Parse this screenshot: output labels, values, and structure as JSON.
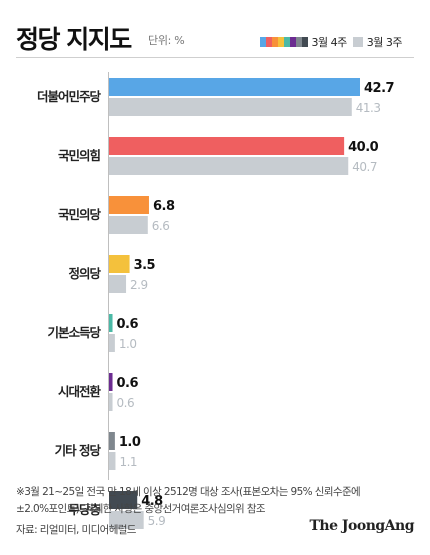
{
  "header": {
    "title": "정당 지지도",
    "unit": "단위: %"
  },
  "legend": {
    "current_label": "3월 4주",
    "previous_label": "3월 3주"
  },
  "footer": {
    "note": "※3월 21~25일 전국 만 18세 이상 2512명 대상 조사(표본오차는 95% 신뢰수준에 ±2.0%포인트). 자세한 사항은 중앙선거여론조사심의위 참조",
    "source": "자료: 리얼미터, 미디어헤럴드",
    "brand": "The JoongAng"
  },
  "chart_data": {
    "type": "bar",
    "orientation": "horizontal",
    "categories": [
      "더불어민주당",
      "국민의힘",
      "국민의당",
      "정의당",
      "기본소득당",
      "시대전환",
      "기타 정당",
      "무당층"
    ],
    "series": [
      {
        "name": "3월 4주",
        "values": [
          42.7,
          40.0,
          6.8,
          3.5,
          0.6,
          0.6,
          1.0,
          4.8
        ],
        "value_labels": [
          "42.7",
          "40.0",
          "6.8",
          "3.5",
          "0.6",
          "0.6",
          "1.0",
          "4.8"
        ],
        "colors": [
          "#58a6e6",
          "#ef5f60",
          "#f8913a",
          "#f4c13c",
          "#4bb9a6",
          "#6c2c91",
          "#7f878e",
          "#424a52"
        ]
      },
      {
        "name": "3월 3주",
        "values": [
          41.3,
          40.7,
          6.6,
          2.9,
          1.0,
          0.6,
          1.1,
          5.9
        ],
        "value_labels": [
          "41.3",
          "40.7",
          "6.6",
          "2.9",
          "1.0",
          "0.6",
          "1.1",
          "5.9"
        ],
        "color": "#c8cdd2"
      }
    ],
    "xlim": [
      0,
      42.7
    ],
    "legend_position": "top-right"
  }
}
